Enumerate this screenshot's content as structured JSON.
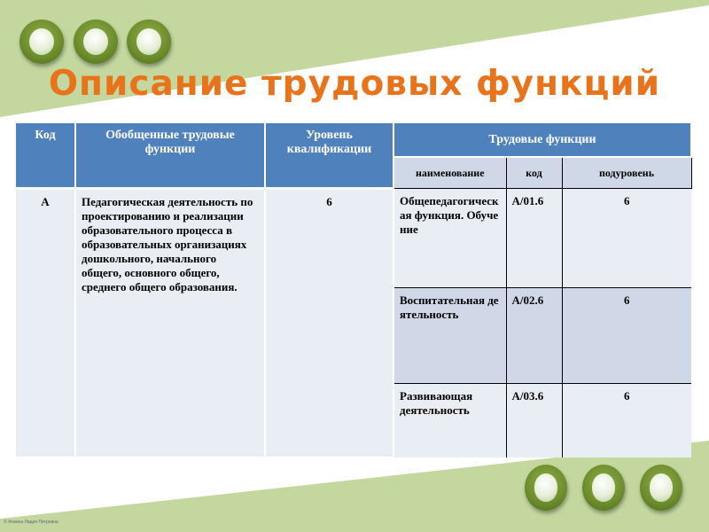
{
  "slide": {
    "title": "Описание трудовых функций",
    "footer": "© Фокина Лидия Петровна",
    "colors": {
      "title": "#e8731a",
      "header": "#4f81bd",
      "band_light": "#e9edf4",
      "band_dark": "#d0d8e8",
      "decor_green": "#c4d79f"
    }
  },
  "table": {
    "headers": {
      "code": "Код",
      "generalized": "Обобщенные трудовые функции",
      "level": "Уровень квалификации",
      "functions": "Трудовые функции",
      "sub_name": "наименование",
      "sub_code": "код",
      "sub_level": "подуровень"
    },
    "general": {
      "code": "А",
      "name": "Педагогическая деятельность по проектированию и реализации образовательного процесса в образовательных организациях дошкольного, начального общего, основного общего, среднего общего образования.",
      "level": "6"
    },
    "functions": [
      {
        "name": "Общепедагогическая функция. Обучение",
        "code": "А/01.6",
        "sublevel": "6"
      },
      {
        "name": "Воспитательная деятельность",
        "code": "А/02.6",
        "sublevel": "6"
      },
      {
        "name": "Развивающая деятельность",
        "code": "А/03.6",
        "sublevel": "6"
      }
    ]
  }
}
